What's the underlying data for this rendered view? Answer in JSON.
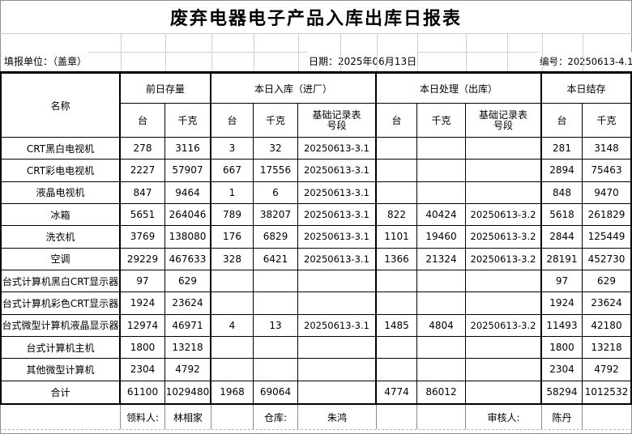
{
  "title": "废弃电器电子产品入库出库日报表",
  "meta": {
    "unit": "填报单位：（盖章）",
    "date": "日期：2025年06月13日",
    "number": "编号：20250613-4.1"
  },
  "table": {
    "name_header": "名称",
    "groups": [
      {
        "label": "前日存量",
        "subs": [
          "台",
          "千克"
        ]
      },
      {
        "label": "本日入库（进厂）",
        "subs": [
          "台",
          "千克",
          "基础记录表号段"
        ]
      },
      {
        "label": "本日处理（出库）",
        "subs": [
          "台",
          "千克",
          "基础记录表号段"
        ]
      },
      {
        "label": "本日结存",
        "subs": [
          "台",
          "千克"
        ]
      }
    ],
    "rows": [
      {
        "name": "CRT黑白电视机",
        "values": [
          "278",
          "3116",
          "3",
          "32",
          "20250613-3.1",
          "",
          "",
          "",
          "281",
          "3148"
        ]
      },
      {
        "name": "CRT彩电电视机",
        "values": [
          "2227",
          "57907",
          "667",
          "17556",
          "20250613-3.1",
          "",
          "",
          "",
          "2894",
          "75463"
        ]
      },
      {
        "name": "液晶电视机",
        "values": [
          "847",
          "9464",
          "1",
          "6",
          "20250613-3.1",
          "",
          "",
          "",
          "848",
          "9470"
        ]
      },
      {
        "name": "冰箱",
        "values": [
          "5651",
          "264046",
          "789",
          "38207",
          "20250613-3.1",
          "822",
          "40424",
          "20250613-3.2",
          "5618",
          "261829"
        ]
      },
      {
        "name": "洗衣机",
        "values": [
          "3769",
          "138080",
          "176",
          "6829",
          "20250613-3.1",
          "1101",
          "19460",
          "20250613-3.2",
          "2844",
          "125449"
        ]
      },
      {
        "name": "空调",
        "values": [
          "29229",
          "467633",
          "328",
          "6421",
          "20250613-3.1",
          "1366",
          "21324",
          "20250613-3.2",
          "28191",
          "452730"
        ]
      },
      {
        "name": "台式计算机黑白CRT显示器",
        "values": [
          "97",
          "629",
          "",
          "",
          "",
          "",
          "",
          "",
          "97",
          "629"
        ]
      },
      {
        "name": "台式计算机彩色CRT显示器",
        "values": [
          "1924",
          "23624",
          "",
          "",
          "",
          "",
          "",
          "",
          "1924",
          "23624"
        ]
      },
      {
        "name": "台式微型计算机液晶显示器",
        "values": [
          "12974",
          "46971",
          "4",
          "13",
          "20250613-3.1",
          "1485",
          "4804",
          "20250613-3.2",
          "11493",
          "42180"
        ]
      },
      {
        "name": "台式计算机主机",
        "values": [
          "1800",
          "13218",
          "",
          "",
          "",
          "",
          "",
          "",
          "1800",
          "13218"
        ]
      },
      {
        "name": "其他微型计算机",
        "values": [
          "2304",
          "4792",
          "",
          "",
          "",
          "",
          "",
          "",
          "2304",
          "4792"
        ]
      },
      {
        "name": "合计",
        "values": [
          "61100",
          "1029480",
          "1968",
          "69064",
          "",
          "4774",
          "86012",
          "",
          "58294",
          "1012532"
        ]
      }
    ]
  },
  "signatures": {
    "picker_label": "领料人:",
    "picker_name": "林相家",
    "warehouse_label": "仓库:",
    "warehouse_name": "朱鸿",
    "auditor_label": "审核人:",
    "auditor_name": "陈丹"
  },
  "colors": {
    "background": "#ffffff",
    "text": "#000000",
    "table_border": "#000000",
    "gridline": "#cfcfcf"
  }
}
